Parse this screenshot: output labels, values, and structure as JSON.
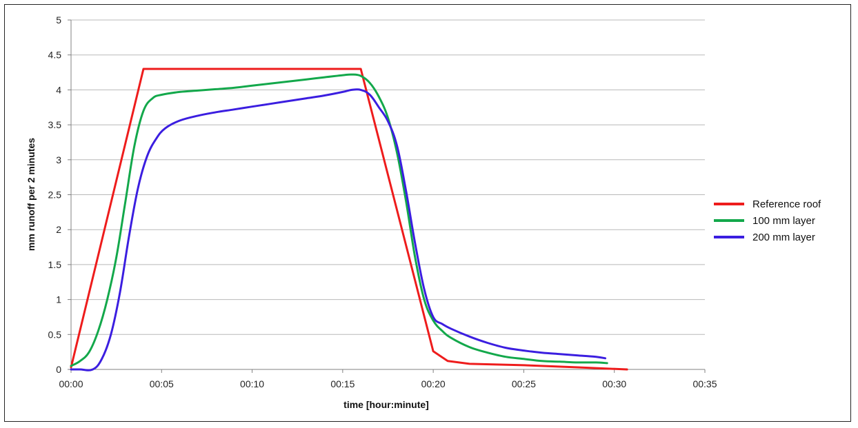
{
  "chart_data": {
    "type": "line",
    "title": "",
    "xlabel": "time [hour:minute]",
    "ylabel": "mm runoff per 2 minutes",
    "xlim": [
      0,
      35
    ],
    "ylim": [
      0,
      5
    ],
    "x_ticks": [
      {
        "value": 0,
        "label": "00:00"
      },
      {
        "value": 5,
        "label": "00:05"
      },
      {
        "value": 10,
        "label": "00:10"
      },
      {
        "value": 15,
        "label": "00:15"
      },
      {
        "value": 20,
        "label": "00:20"
      },
      {
        "value": 25,
        "label": "00:25"
      },
      {
        "value": 30,
        "label": "00:30"
      },
      {
        "value": 35,
        "label": "00:35"
      }
    ],
    "y_ticks": [
      {
        "value": 0,
        "label": "0"
      },
      {
        "value": 0.5,
        "label": "0.5"
      },
      {
        "value": 1,
        "label": "1"
      },
      {
        "value": 1.5,
        "label": "1.5"
      },
      {
        "value": 2,
        "label": "2"
      },
      {
        "value": 2.5,
        "label": "2.5"
      },
      {
        "value": 3,
        "label": "3"
      },
      {
        "value": 3.5,
        "label": "3.5"
      },
      {
        "value": 4,
        "label": "4"
      },
      {
        "value": 4.5,
        "label": "4.5"
      },
      {
        "value": 5,
        "label": "5"
      }
    ],
    "grid": "horizontal",
    "legend_position": "right",
    "series": [
      {
        "name": "Reference roof",
        "color": "#ee1c1c",
        "x": [
          0,
          4,
          16,
          20,
          20.8,
          22,
          25,
          28,
          30.7
        ],
        "y": [
          0.03,
          4.3,
          4.3,
          0.26,
          0.12,
          0.08,
          0.06,
          0.03,
          0.0
        ]
      },
      {
        "name": "100 mm layer",
        "color": "#13a84b",
        "x": [
          0,
          0.5,
          1,
          1.5,
          2,
          2.5,
          3,
          3.5,
          4,
          4.5,
          5,
          6,
          7,
          8,
          9,
          10,
          11,
          12,
          13,
          14,
          15,
          15.5,
          16,
          16.5,
          17,
          17.5,
          18,
          18.5,
          19,
          19.5,
          20,
          20.5,
          21,
          22,
          23,
          24,
          25,
          26,
          27,
          28,
          29,
          29.6
        ],
        "y": [
          0.05,
          0.12,
          0.25,
          0.55,
          1.0,
          1.6,
          2.4,
          3.2,
          3.7,
          3.88,
          3.93,
          3.97,
          3.99,
          4.01,
          4.03,
          4.06,
          4.09,
          4.12,
          4.15,
          4.18,
          4.21,
          4.22,
          4.2,
          4.1,
          3.9,
          3.6,
          3.1,
          2.4,
          1.6,
          1.0,
          0.7,
          0.55,
          0.45,
          0.32,
          0.24,
          0.18,
          0.15,
          0.12,
          0.11,
          0.1,
          0.1,
          0.09
        ]
      },
      {
        "name": "200 mm layer",
        "color": "#3b1ee0",
        "x": [
          0,
          0.5,
          1.2,
          1.7,
          2.2,
          2.7,
          3.2,
          3.7,
          4.2,
          4.7,
          5.2,
          6,
          7,
          8,
          9,
          10,
          11,
          12,
          13,
          14,
          15,
          15.5,
          16,
          16.5,
          17,
          17.5,
          18,
          18.5,
          19,
          19.5,
          20,
          20.5,
          21,
          22,
          23,
          24,
          25,
          26,
          27,
          28,
          29,
          29.5
        ],
        "y": [
          0,
          0,
          0,
          0.15,
          0.5,
          1.1,
          1.9,
          2.6,
          3.05,
          3.3,
          3.45,
          3.56,
          3.63,
          3.68,
          3.72,
          3.76,
          3.8,
          3.84,
          3.88,
          3.92,
          3.97,
          4.0,
          4.0,
          3.93,
          3.75,
          3.55,
          3.2,
          2.55,
          1.8,
          1.15,
          0.75,
          0.65,
          0.58,
          0.47,
          0.38,
          0.31,
          0.27,
          0.24,
          0.22,
          0.2,
          0.18,
          0.16
        ]
      }
    ]
  }
}
